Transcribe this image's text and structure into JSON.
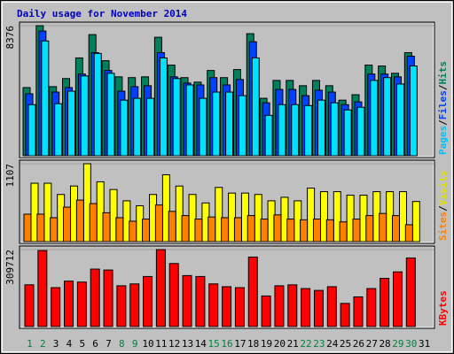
{
  "chart_data": [
    {
      "type": "bar",
      "title": "Daily usage for November 2014",
      "legend_separator": "/",
      "ylim": [
        0,
        8376
      ],
      "yticks": [
        8376
      ],
      "series": [
        {
          "name": "Hits",
          "color": "#00805c",
          "label_color": "#00805c",
          "values": [
            4390,
            8376,
            4450,
            4970,
            6300,
            7800,
            6120,
            5080,
            5030,
            5080,
            7630,
            5840,
            5030,
            4740,
            5490,
            5030,
            5550,
            7860,
            3700,
            4850,
            4850,
            4510,
            4850,
            4510,
            3580,
            3930,
            5840,
            5780,
            5310,
            6640,
            null
          ]
        },
        {
          "name": "Files",
          "color": "#0040ff",
          "label_color": "#0040ff",
          "values": [
            3990,
            8030,
            4100,
            4390,
            5260,
            6640,
            5490,
            4160,
            4450,
            4510,
            6640,
            5080,
            4680,
            4560,
            5030,
            4560,
            4910,
            7340,
            3410,
            4270,
            4270,
            3870,
            4220,
            4100,
            3290,
            3470,
            5260,
            5260,
            5080,
            6410,
            null
          ]
        },
        {
          "name": "Pages",
          "color": "#00e0ff",
          "label_color": "#00c0ff",
          "values": [
            3290,
            7390,
            3350,
            4160,
            5140,
            6590,
            5310,
            3580,
            3700,
            3700,
            6300,
            4970,
            4560,
            3700,
            4100,
            4100,
            3870,
            6300,
            2600,
            3290,
            3290,
            3230,
            3580,
            3410,
            2950,
            3120,
            4850,
            5030,
            4620,
            5780,
            null
          ]
        }
      ]
    },
    {
      "type": "bar",
      "legend_separator": "/",
      "ylim": [
        0,
        1107
      ],
      "yticks": [
        1107
      ],
      "series": [
        {
          "name": "Visits",
          "color": "#ffff00",
          "label_color": "#e0e000",
          "values": [
            830,
            830,
            670,
            790,
            1107,
            850,
            740,
            580,
            510,
            670,
            950,
            790,
            670,
            550,
            770,
            690,
            690,
            670,
            580,
            630,
            580,
            760,
            710,
            710,
            660,
            660,
            710,
            710,
            710,
            570,
            null
          ]
        },
        {
          "name": "Sites",
          "color": "#ff8000",
          "label_color": "#ff8000",
          "values": [
            390,
            390,
            340,
            490,
            590,
            540,
            410,
            340,
            290,
            320,
            520,
            430,
            370,
            320,
            350,
            340,
            340,
            370,
            320,
            380,
            320,
            310,
            320,
            310,
            280,
            320,
            370,
            400,
            370,
            240,
            null
          ]
        }
      ]
    },
    {
      "type": "bar",
      "ylim": [
        0,
        309712
      ],
      "yticks": [
        309712
      ],
      "categories": [
        "1",
        "2",
        "3",
        "4",
        "5",
        "6",
        "7",
        "8",
        "9",
        "10",
        "11",
        "12",
        "13",
        "14",
        "15",
        "16",
        "17",
        "18",
        "19",
        "20",
        "21",
        "22",
        "23",
        "24",
        "25",
        "26",
        "27",
        "28",
        "29",
        "30",
        "31"
      ],
      "category_colors": [
        "#008040",
        "#008040",
        "#000000",
        "#000000",
        "#000000",
        "#000000",
        "#000000",
        "#008040",
        "#008040",
        "#000000",
        "#000000",
        "#000000",
        "#000000",
        "#000000",
        "#008040",
        "#008040",
        "#000000",
        "#000000",
        "#000000",
        "#000000",
        "#000000",
        "#008040",
        "#008040",
        "#000000",
        "#000000",
        "#000000",
        "#000000",
        "#000000",
        "#008040",
        "#008040",
        "#000000"
      ],
      "series": [
        {
          "name": "KBytes",
          "color": "#ff0000",
          "label_color": "#ff0000",
          "values": [
            168000,
            305800,
            156600,
            182800,
            179000,
            231200,
            227500,
            164100,
            171600,
            201400,
            309712,
            253600,
            205100,
            201400,
            171600,
            160400,
            156600,
            279700,
            123100,
            164100,
            167800,
            152900,
            145500,
            160400,
            93200,
            119400,
            152900,
            193900,
            220000,
            276000,
            null
          ]
        }
      ]
    }
  ]
}
